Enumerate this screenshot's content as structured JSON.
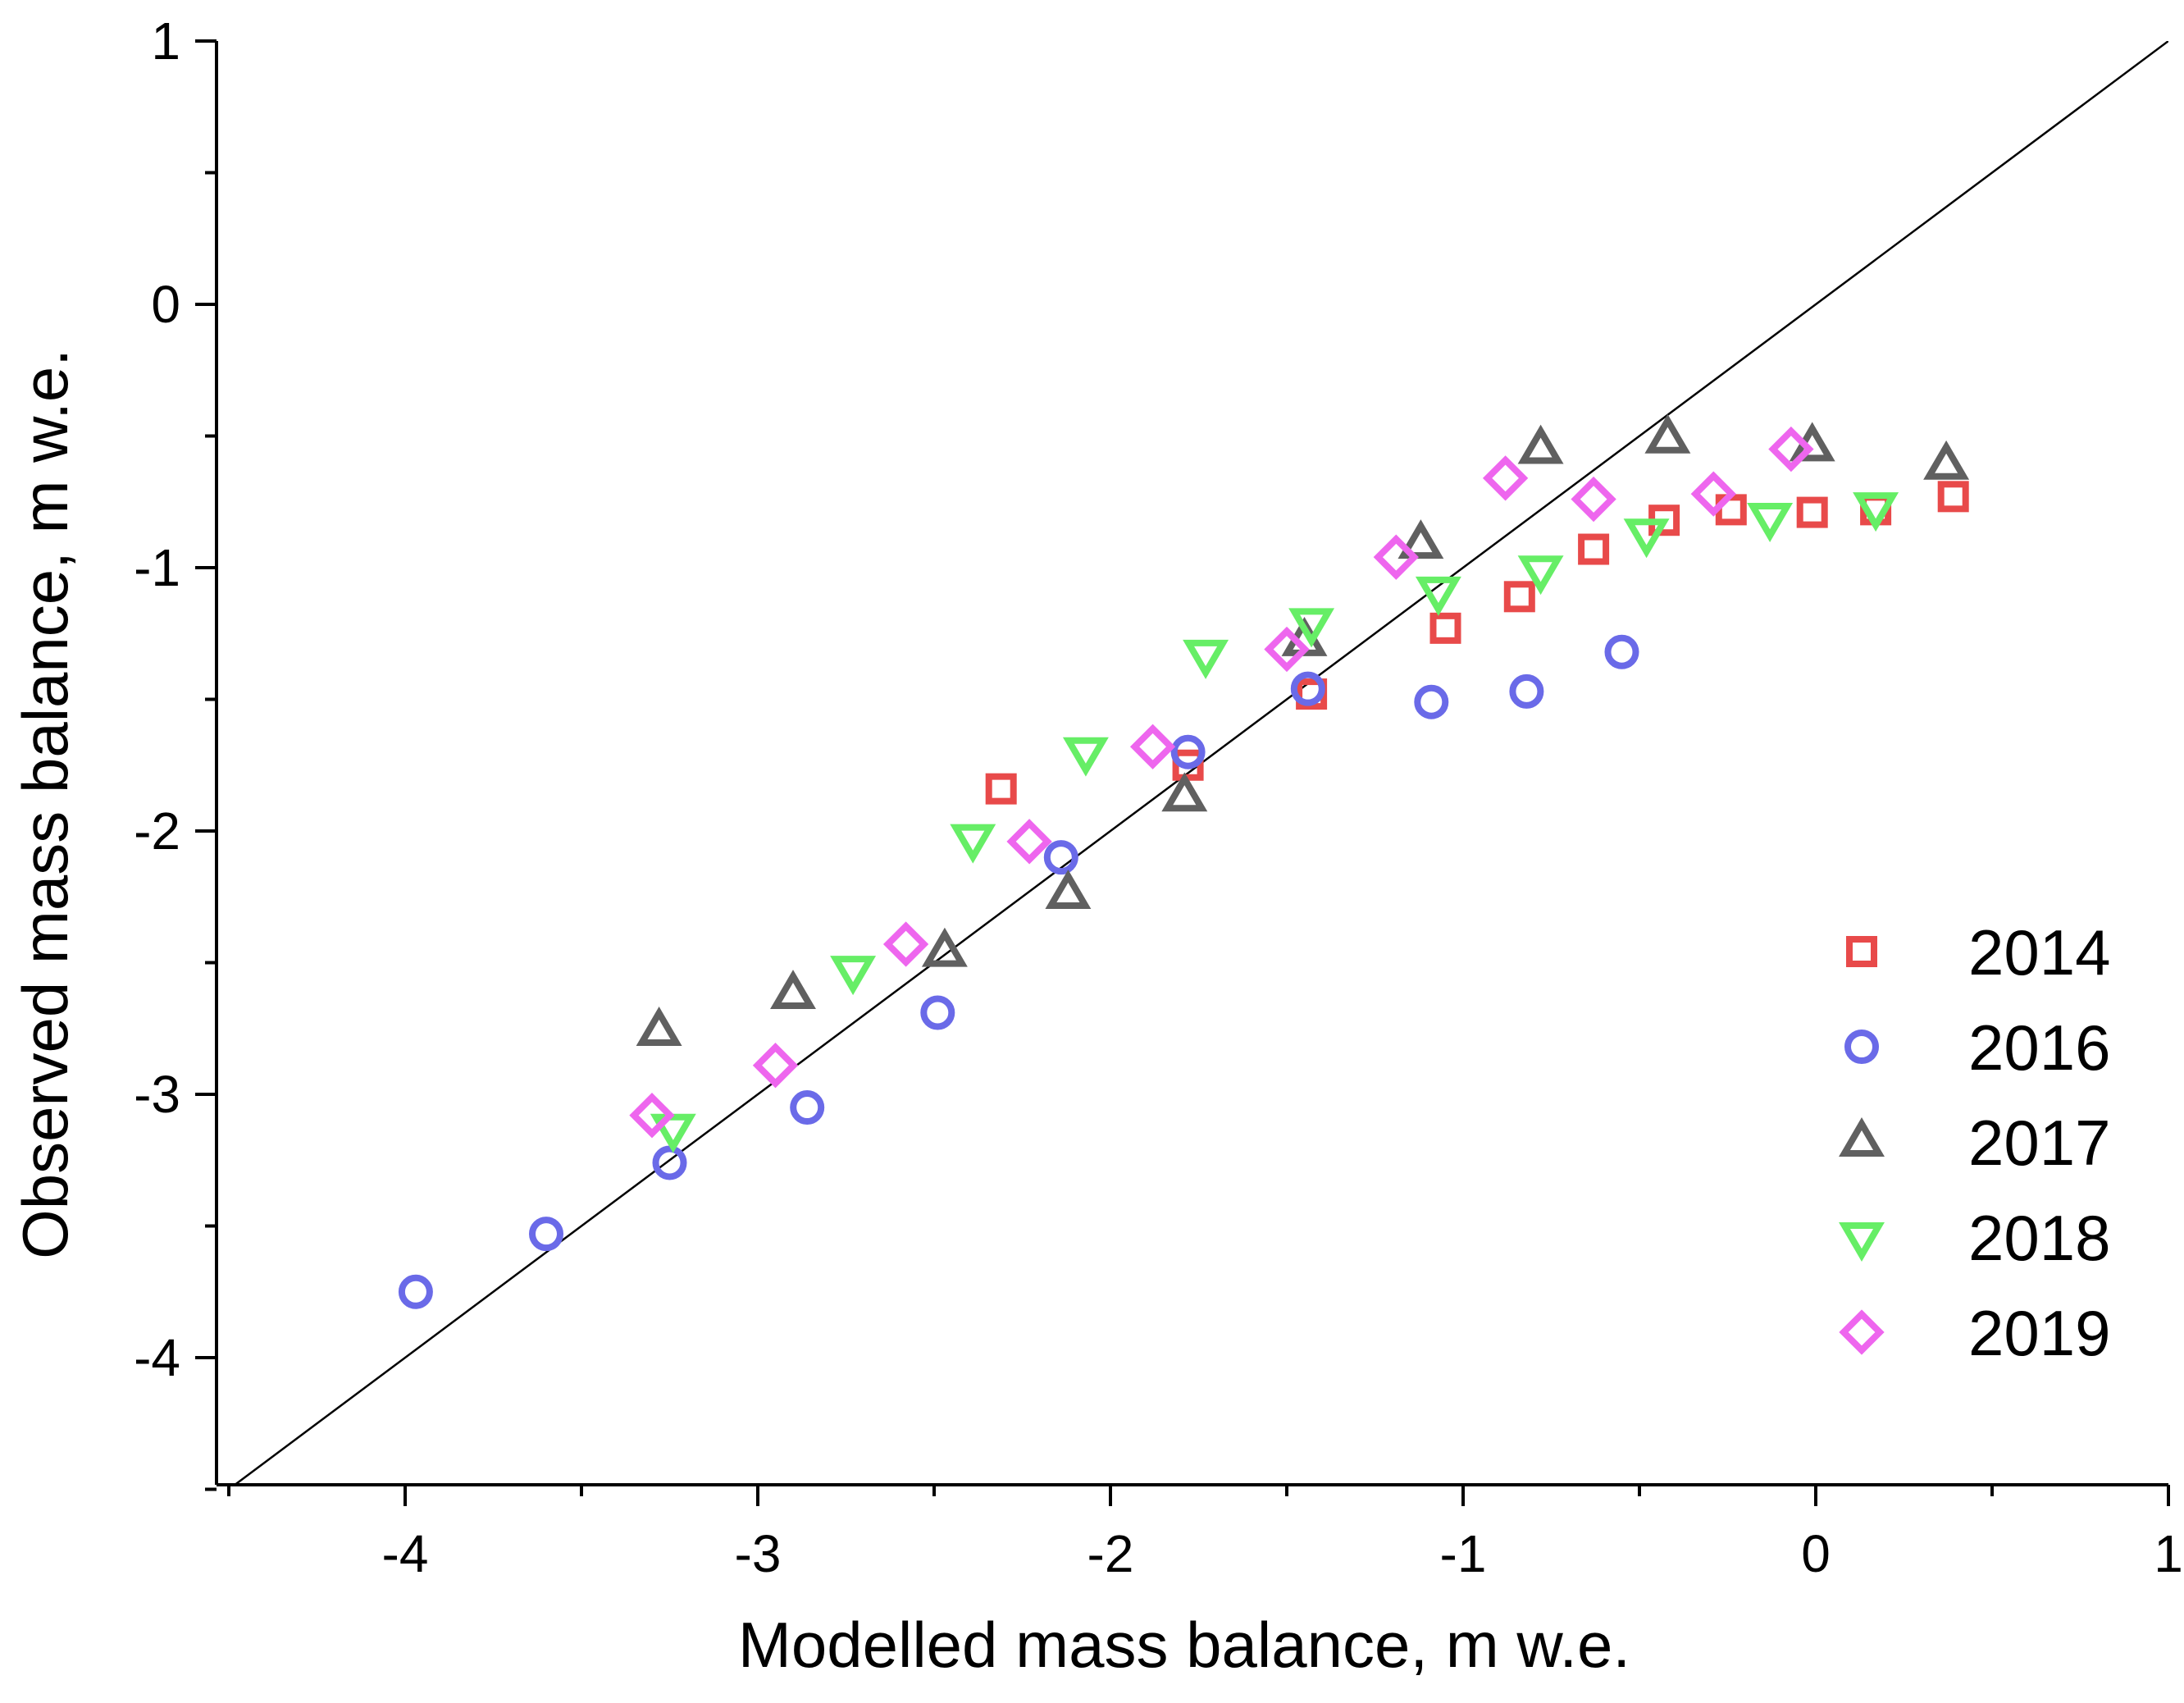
{
  "chart_data": {
    "type": "scatter",
    "title": "",
    "xlabel": "Modelled mass balance, m w.e.",
    "ylabel": "Observed mass balance, m w.e.",
    "xlim": [
      -4.5,
      1
    ],
    "ylim": [
      -4.5,
      1
    ],
    "xticks": [
      -4,
      -3,
      -2,
      -1,
      0,
      1
    ],
    "yticks": [
      -4,
      -3,
      -2,
      -1,
      0,
      1
    ],
    "xtick_labels": [
      "-4",
      "-3",
      "-2",
      "-1",
      "0",
      "1"
    ],
    "ytick_labels": [
      "-4",
      "-3",
      "-2",
      "-1",
      "0",
      "1"
    ],
    "reference_line": "1:1",
    "legend_position": "bottom-right",
    "series": [
      {
        "name": "2014",
        "marker": "square",
        "color": "#e84a4a",
        "points": [
          [
            -2.31,
            -1.84
          ],
          [
            -1.78,
            -1.75
          ],
          [
            -1.43,
            -1.48
          ],
          [
            -1.05,
            -1.23
          ],
          [
            -0.84,
            -1.11
          ],
          [
            -0.63,
            -0.93
          ],
          [
            -0.43,
            -0.82
          ],
          [
            -0.24,
            -0.78
          ],
          [
            -0.01,
            -0.79
          ],
          [
            0.17,
            -0.78
          ],
          [
            0.39,
            -0.73
          ]
        ]
      },
      {
        "name": "2016",
        "marker": "circle",
        "color": "#6a6ae8",
        "points": [
          [
            -3.97,
            -3.75
          ],
          [
            -3.6,
            -3.53
          ],
          [
            -3.25,
            -3.26
          ],
          [
            -2.86,
            -3.05
          ],
          [
            -2.49,
            -2.69
          ],
          [
            -2.14,
            -2.1
          ],
          [
            -1.78,
            -1.7
          ],
          [
            -1.44,
            -1.46
          ],
          [
            -1.09,
            -1.51
          ],
          [
            -0.82,
            -1.47
          ],
          [
            -0.55,
            -1.32
          ]
        ]
      },
      {
        "name": "2017",
        "marker": "triangle-up",
        "color": "#606060",
        "points": [
          [
            -3.28,
            -2.76
          ],
          [
            -2.9,
            -2.62
          ],
          [
            -2.47,
            -2.46
          ],
          [
            -2.12,
            -2.24
          ],
          [
            -1.79,
            -1.87
          ],
          [
            -1.45,
            -1.28
          ],
          [
            -1.12,
            -0.91
          ],
          [
            -0.78,
            -0.55
          ],
          [
            -0.42,
            -0.51
          ],
          [
            -0.01,
            -0.54
          ],
          [
            0.37,
            -0.61
          ]
        ]
      },
      {
        "name": "2018",
        "marker": "triangle-down",
        "color": "#66ee66",
        "points": [
          [
            -3.24,
            -3.13
          ],
          [
            -2.73,
            -2.53
          ],
          [
            -2.39,
            -2.03
          ],
          [
            -2.07,
            -1.7
          ],
          [
            -1.73,
            -1.33
          ],
          [
            -1.43,
            -1.21
          ],
          [
            -1.07,
            -1.09
          ],
          [
            -0.78,
            -1.01
          ],
          [
            -0.48,
            -0.87
          ],
          [
            -0.13,
            -0.81
          ],
          [
            0.17,
            -0.77
          ]
        ]
      },
      {
        "name": "2019",
        "marker": "diamond",
        "color": "#ee66ee",
        "points": [
          [
            -3.3,
            -3.08
          ],
          [
            -2.95,
            -2.89
          ],
          [
            -2.58,
            -2.43
          ],
          [
            -2.23,
            -2.04
          ],
          [
            -1.88,
            -1.68
          ],
          [
            -1.5,
            -1.31
          ],
          [
            -1.19,
            -0.96
          ],
          [
            -0.88,
            -0.66
          ],
          [
            -0.63,
            -0.74
          ],
          [
            -0.29,
            -0.72
          ],
          [
            -0.07,
            -0.55
          ]
        ]
      }
    ]
  }
}
